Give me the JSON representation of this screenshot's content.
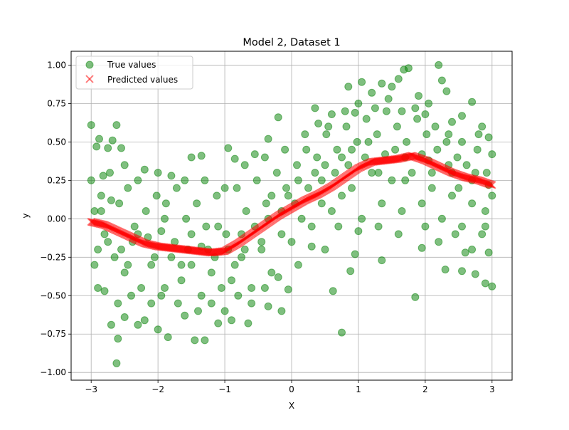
{
  "chart_data": {
    "type": "scatter",
    "title": "Model 2, Dataset 1",
    "xlabel": "X",
    "ylabel": "y",
    "xlim": [
      -3.3,
      3.3
    ],
    "ylim": [
      -1.05,
      1.09
    ],
    "xticks": [
      -3,
      -2,
      -1,
      0,
      1,
      2,
      3
    ],
    "xtick_labels": [
      "−3",
      "−2",
      "−1",
      "0",
      "1",
      "2",
      "3"
    ],
    "yticks": [
      -1.0,
      -0.75,
      -0.5,
      -0.25,
      0.0,
      0.25,
      0.5,
      0.75,
      1.0
    ],
    "ytick_labels": [
      "−1.00",
      "−0.75",
      "−0.50",
      "−0.25",
      "0.00",
      "0.25",
      "0.50",
      "0.75",
      "1.00"
    ],
    "grid": true,
    "legend_position": "upper-left",
    "series": [
      {
        "name": "True values",
        "marker": "circle",
        "color": "#008000",
        "alpha": 0.5,
        "points": [
          [
            -3.0,
            0.61
          ],
          [
            -2.92,
            0.47
          ],
          [
            -2.88,
            0.52
          ],
          [
            -2.82,
            0.28
          ],
          [
            -2.75,
            0.46
          ],
          [
            -2.68,
            0.51
          ],
          [
            -2.62,
            0.61
          ],
          [
            -2.55,
            0.46
          ],
          [
            -2.9,
            -0.45
          ],
          [
            -2.8,
            -0.47
          ],
          [
            -2.7,
            -0.69
          ],
          [
            -2.62,
            -0.94
          ],
          [
            -2.6,
            -0.78
          ],
          [
            -2.5,
            -0.64
          ],
          [
            -2.3,
            -0.69
          ],
          [
            -2.2,
            -0.66
          ],
          [
            -2.0,
            -0.72
          ],
          [
            -1.85,
            -0.77
          ],
          [
            -1.6,
            -0.63
          ],
          [
            -1.45,
            -0.79
          ],
          [
            -1.3,
            -0.79
          ],
          [
            -1.1,
            -0.68
          ],
          [
            -0.9,
            -0.66
          ],
          [
            -0.65,
            -0.68
          ],
          [
            -0.35,
            -0.57
          ],
          [
            -0.15,
            -0.6
          ],
          [
            -0.05,
            -0.46
          ],
          [
            -1.5,
            0.4
          ],
          [
            -1.35,
            0.41
          ],
          [
            -0.95,
            0.46
          ],
          [
            -0.85,
            0.39
          ],
          [
            -0.55,
            0.42
          ],
          [
            -0.35,
            0.52
          ],
          [
            -0.2,
            0.66
          ],
          [
            0.35,
            0.72
          ],
          [
            0.55,
            0.6
          ],
          [
            0.85,
            0.86
          ],
          [
            0.95,
            0.69
          ],
          [
            1.05,
            0.89
          ],
          [
            1.2,
            0.82
          ],
          [
            1.35,
            0.88
          ],
          [
            1.5,
            0.86
          ],
          [
            1.6,
            0.91
          ],
          [
            1.68,
            0.97
          ],
          [
            1.75,
            0.98
          ],
          [
            1.9,
            0.8
          ],
          [
            2.05,
            0.75
          ],
          [
            2.2,
            1.0
          ],
          [
            2.25,
            0.9
          ],
          [
            2.32,
            0.83
          ],
          [
            2.4,
            0.63
          ],
          [
            2.55,
            0.67
          ],
          [
            2.7,
            0.76
          ],
          [
            2.85,
            0.6
          ],
          [
            2.95,
            0.53
          ],
          [
            3.0,
            0.42
          ],
          [
            0.62,
            -0.47
          ],
          [
            0.75,
            -0.74
          ],
          [
            0.88,
            -0.34
          ],
          [
            0.95,
            -0.23
          ],
          [
            1.35,
            -0.27
          ],
          [
            1.85,
            -0.51
          ],
          [
            1.95,
            -0.19
          ],
          [
            2.3,
            -0.33
          ],
          [
            2.55,
            -0.34
          ],
          [
            2.75,
            -0.36
          ],
          [
            2.9,
            -0.42
          ],
          [
            3.0,
            -0.44
          ],
          [
            2.95,
            -0.22
          ],
          [
            2.6,
            -0.22
          ],
          [
            -3.0,
            0.25
          ],
          [
            -2.95,
            0.05
          ],
          [
            -2.9,
            -0.2
          ],
          [
            -2.85,
            0.15
          ],
          [
            -2.8,
            -0.1
          ],
          [
            -2.72,
            0.3
          ],
          [
            -2.65,
            -0.25
          ],
          [
            -2.58,
            0.1
          ],
          [
            -2.5,
            -0.35
          ],
          [
            -2.45,
            0.2
          ],
          [
            -2.38,
            -0.15
          ],
          [
            -2.3,
            0.25
          ],
          [
            -2.25,
            -0.45
          ],
          [
            -2.18,
            0.05
          ],
          [
            -2.1,
            -0.3
          ],
          [
            -2.02,
            0.15
          ],
          [
            -1.95,
            -0.5
          ],
          [
            -1.88,
            0.1
          ],
          [
            -1.8,
            -0.25
          ],
          [
            -1.72,
            0.2
          ],
          [
            -1.65,
            -0.4
          ],
          [
            -1.58,
            0.0
          ],
          [
            -1.5,
            -0.3
          ],
          [
            -1.42,
            0.1
          ],
          [
            -1.35,
            -0.5
          ],
          [
            -1.28,
            -0.05
          ],
          [
            -1.2,
            -0.35
          ],
          [
            -1.12,
            0.15
          ],
          [
            -1.05,
            -0.45
          ],
          [
            -0.98,
            -0.1
          ],
          [
            -0.9,
            -0.4
          ],
          [
            -0.82,
            0.2
          ],
          [
            -0.75,
            -0.25
          ],
          [
            -0.68,
            0.05
          ],
          [
            -0.6,
            -0.45
          ],
          [
            -0.52,
            0.25
          ],
          [
            -0.45,
            -0.2
          ],
          [
            -0.38,
            0.1
          ],
          [
            -0.3,
            -0.35
          ],
          [
            -0.22,
            0.3
          ],
          [
            -0.15,
            -0.1
          ],
          [
            -0.08,
            0.2
          ],
          [
            0.0,
            -0.15
          ],
          [
            0.08,
            0.35
          ],
          [
            0.15,
            0.0
          ],
          [
            0.22,
            0.45
          ],
          [
            0.3,
            -0.05
          ],
          [
            0.38,
            0.4
          ],
          [
            0.45,
            0.1
          ],
          [
            0.52,
            0.55
          ],
          [
            0.6,
            0.05
          ],
          [
            0.68,
            0.45
          ],
          [
            0.75,
            0.15
          ],
          [
            0.82,
            0.6
          ],
          [
            0.9,
            0.2
          ],
          [
            0.98,
            0.5
          ],
          [
            1.05,
            0.0
          ],
          [
            1.12,
            0.65
          ],
          [
            1.2,
            0.3
          ],
          [
            1.28,
            0.55
          ],
          [
            1.35,
            0.1
          ],
          [
            1.42,
            0.7
          ],
          [
            1.5,
            0.25
          ],
          [
            1.58,
            0.6
          ],
          [
            1.65,
            0.05
          ],
          [
            1.72,
            0.5
          ],
          [
            1.8,
            0.3
          ],
          [
            1.88,
            0.65
          ],
          [
            1.95,
            0.1
          ],
          [
            2.02,
            0.55
          ],
          [
            2.1,
            0.2
          ],
          [
            2.18,
            0.45
          ],
          [
            2.25,
            0.0
          ],
          [
            2.32,
            0.5
          ],
          [
            2.4,
            0.15
          ],
          [
            2.48,
            0.4
          ],
          [
            2.55,
            -0.05
          ],
          [
            2.62,
            0.35
          ],
          [
            2.7,
            0.1
          ],
          [
            2.78,
            0.45
          ],
          [
            2.85,
            -0.1
          ],
          [
            2.92,
            0.3
          ],
          [
            3.0,
            0.15
          ],
          [
            -2.6,
            -0.55
          ],
          [
            -2.4,
            -0.5
          ],
          [
            -2.1,
            -0.55
          ],
          [
            -1.9,
            -0.45
          ],
          [
            -1.7,
            -0.55
          ],
          [
            -1.4,
            -0.6
          ],
          [
            -1.2,
            -0.55
          ],
          [
            -1.0,
            -0.6
          ],
          [
            -0.8,
            -0.5
          ],
          [
            -0.6,
            -0.55
          ],
          [
            -0.4,
            -0.45
          ],
          [
            -0.2,
            -0.38
          ],
          [
            0.1,
            -0.3
          ],
          [
            0.3,
            -0.18
          ],
          [
            0.5,
            -0.2
          ],
          [
            0.7,
            -0.05
          ],
          [
            1.0,
            -0.08
          ],
          [
            1.3,
            -0.05
          ],
          [
            1.6,
            -0.1
          ],
          [
            2.0,
            -0.05
          ],
          [
            2.2,
            -0.15
          ],
          [
            2.45,
            -0.1
          ],
          [
            2.7,
            -0.2
          ],
          [
            2.9,
            -0.05
          ],
          [
            -2.5,
            0.35
          ],
          [
            -2.2,
            0.32
          ],
          [
            -2.0,
            0.3
          ],
          [
            -1.8,
            0.28
          ],
          [
            -1.6,
            0.25
          ],
          [
            -1.3,
            0.25
          ],
          [
            -1.0,
            0.2
          ],
          [
            -0.7,
            0.35
          ],
          [
            -0.4,
            0.4
          ],
          [
            -0.1,
            0.45
          ],
          [
            0.2,
            0.55
          ],
          [
            0.4,
            0.62
          ],
          [
            0.6,
            0.68
          ],
          [
            0.8,
            0.7
          ],
          [
            1.0,
            0.75
          ],
          [
            1.25,
            0.72
          ],
          [
            1.45,
            0.78
          ],
          [
            1.65,
            0.7
          ],
          [
            1.85,
            0.72
          ],
          [
            2.0,
            0.68
          ],
          [
            2.15,
            0.6
          ],
          [
            2.35,
            0.55
          ],
          [
            2.55,
            0.5
          ],
          [
            2.8,
            0.55
          ],
          [
            -2.95,
            -0.3
          ],
          [
            -2.75,
            -0.15
          ],
          [
            -2.55,
            -0.2
          ],
          [
            -2.35,
            -0.05
          ],
          [
            -2.15,
            -0.12
          ],
          [
            -1.95,
            -0.08
          ],
          [
            -1.75,
            -0.15
          ],
          [
            -1.55,
            -0.2
          ],
          [
            -1.35,
            -0.18
          ],
          [
            -1.15,
            -0.25
          ],
          [
            -0.95,
            -0.2
          ],
          [
            -0.75,
            -0.1
          ],
          [
            -0.55,
            -0.05
          ],
          [
            -0.35,
            0.0
          ],
          [
            -0.15,
            0.05
          ],
          [
            0.05,
            0.1
          ],
          [
            0.25,
            0.2
          ],
          [
            0.45,
            0.25
          ],
          [
            0.65,
            0.3
          ],
          [
            0.85,
            0.35
          ],
          [
            1.1,
            0.4
          ],
          [
            1.4,
            0.42
          ],
          [
            1.7,
            0.4
          ],
          [
            2.05,
            0.38
          ],
          [
            2.4,
            0.3
          ],
          [
            2.7,
            0.25
          ],
          [
            2.95,
            0.22
          ],
          [
            -2.85,
            0.05
          ],
          [
            -2.45,
            -0.3
          ],
          [
            -2.05,
            -0.25
          ],
          [
            -1.65,
            -0.3
          ],
          [
            -1.25,
            -0.2
          ],
          [
            -0.85,
            -0.3
          ],
          [
            -0.45,
            -0.15
          ],
          [
            -0.05,
            0.15
          ],
          [
            0.35,
            0.3
          ],
          [
            0.75,
            0.4
          ],
          [
            1.15,
            0.5
          ],
          [
            1.55,
            0.45
          ],
          [
            1.95,
            0.42
          ],
          [
            2.35,
            0.35
          ],
          [
            2.75,
            0.3
          ],
          [
            -2.7,
            0.12
          ],
          [
            -2.3,
            -0.1
          ],
          [
            -1.9,
            0.0
          ],
          [
            -1.5,
            -0.1
          ],
          [
            -1.1,
            -0.05
          ],
          [
            -0.7,
            -0.2
          ],
          [
            -0.3,
            0.15
          ],
          [
            0.1,
            0.25
          ],
          [
            0.5,
            0.35
          ],
          [
            0.9,
            0.45
          ],
          [
            1.3,
            0.3
          ],
          [
            1.7,
            0.25
          ],
          [
            2.1,
            0.3
          ],
          [
            2.5,
            0.2
          ],
          [
            2.9,
            0.05
          ]
        ]
      },
      {
        "name": "Predicted values",
        "marker": "x",
        "color": "#ff0000",
        "alpha": 0.5,
        "curve": [
          [
            -3.0,
            -0.02
          ],
          [
            -2.8,
            -0.04
          ],
          [
            -2.6,
            -0.08
          ],
          [
            -2.4,
            -0.12
          ],
          [
            -2.2,
            -0.16
          ],
          [
            -2.0,
            -0.18
          ],
          [
            -1.8,
            -0.19
          ],
          [
            -1.6,
            -0.2
          ],
          [
            -1.4,
            -0.21
          ],
          [
            -1.2,
            -0.22
          ],
          [
            -1.0,
            -0.21
          ],
          [
            -0.8,
            -0.16
          ],
          [
            -0.6,
            -0.1
          ],
          [
            -0.4,
            -0.04
          ],
          [
            -0.2,
            0.02
          ],
          [
            0.0,
            0.07
          ],
          [
            0.2,
            0.12
          ],
          [
            0.4,
            0.16
          ],
          [
            0.6,
            0.21
          ],
          [
            0.8,
            0.27
          ],
          [
            1.0,
            0.33
          ],
          [
            1.2,
            0.37
          ],
          [
            1.4,
            0.38
          ],
          [
            1.6,
            0.39
          ],
          [
            1.8,
            0.41
          ],
          [
            2.0,
            0.38
          ],
          [
            2.2,
            0.34
          ],
          [
            2.4,
            0.3
          ],
          [
            2.6,
            0.27
          ],
          [
            2.8,
            0.25
          ],
          [
            3.0,
            0.22
          ]
        ]
      }
    ]
  }
}
